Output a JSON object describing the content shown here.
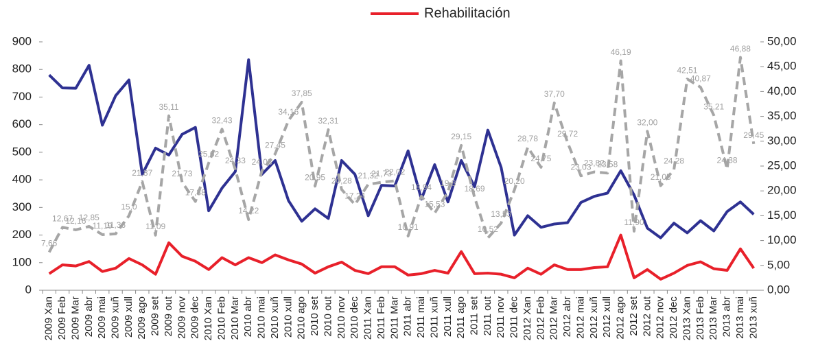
{
  "chart_data": {
    "type": "line",
    "categories": [
      "2009 Xan",
      "2009 Feb",
      "2009 Mar",
      "2009 abr",
      "2009 mai",
      "2009 xuñ",
      "2009 xull",
      "2009 ago",
      "2009 set",
      "2009 out",
      "2009 nov",
      "2009 dec",
      "2010 Xan",
      "2010 Feb",
      "2010 Mar",
      "2010 abr",
      "2010 mai",
      "2010 xuñ",
      "2010 xull",
      "2010 ago",
      "2010 set",
      "2010 out",
      "2010 nov",
      "2010 dec",
      "2011 Xan",
      "2011 Feb",
      "2011 Mar",
      "2011 abr",
      "2011 mai",
      "2011 xuñ",
      "2011 xull",
      "2011 ago",
      "2011 set",
      "2011 out",
      "2011 nov",
      "2011 dec",
      "2012 Xan",
      "2012 Feb",
      "2012 Mar",
      "2012 abr",
      "2012 mai",
      "2012 xuñ",
      "2012 xull",
      "2012 ago",
      "2012 set",
      "2012 out",
      "2012 nov",
      "2012 dec",
      "2013 Xan",
      "2013 Feb",
      "2013 Mar",
      "2013 abr",
      "2013 mai",
      "2013 xuñ"
    ],
    "series": [
      {
        "color": "#2e3192",
        "values": [
          780,
          733,
          732,
          815,
          598,
          705,
          762,
          420,
          515,
          490,
          565,
          590,
          288,
          370,
          430,
          835,
          420,
          470,
          325,
          250,
          295,
          260,
          470,
          420,
          270,
          380,
          378,
          505,
          330,
          455,
          320,
          470,
          375,
          580,
          445,
          200,
          270,
          228,
          240,
          245,
          318,
          340,
          352,
          433,
          345,
          225,
          190,
          243,
          208,
          252,
          215,
          285,
          320,
          275
        ]
      },
      {
        "color": "#a6a6a6",
        "axis": "y2",
        "dash": true,
        "values": [
          7.66,
          12.67,
          12.16,
          12.85,
          11.19,
          11.36,
          15.0,
          21.87,
          11.09,
          35.11,
          21.73,
          17.88,
          25.62,
          32.43,
          24.33,
          14.22,
          24.03,
          27.45,
          34.16,
          37.85,
          20.95,
          32.31,
          20.28,
          17.24,
          21.32,
          21.73,
          22.02,
          10.91,
          18.94,
          15.53,
          19.8,
          29.15,
          18.69,
          10.52,
          13.53,
          20.2,
          28.78,
          24.75,
          37.7,
          29.72,
          23.03,
          23.82,
          23.58,
          46.19,
          11.9,
          32.0,
          21.05,
          24.28,
          42.51,
          40.87,
          35.21,
          24.38,
          46.88,
          29.45
        ],
        "value_labels": [
          "7,66",
          "12,67",
          "12,16",
          "12,85",
          "11,19",
          "11,36",
          "15,0",
          "21,87",
          "11,09",
          "35,11",
          "21,73",
          "17,88",
          "25,62",
          "32,43",
          "24,33",
          "14,22",
          "24,03",
          "27,45",
          "34,16",
          "37,85",
          "20,95",
          "32,31",
          "20,28",
          "17,24",
          "21,32",
          "21,73",
          "22,02",
          "10,91",
          "18,94",
          "15,53",
          "19,8",
          "29,15",
          "18,69",
          "10,52",
          "13,53",
          "20,20",
          "28,78",
          "24,75",
          "37,70",
          "29,72",
          "23,03",
          "23,82",
          "23,58",
          "46,19",
          "11,90",
          "32,00",
          "21,05",
          "24,28",
          "42,51",
          "40,87",
          "35,21",
          "24,38",
          "46,88",
          "29,45"
        ]
      },
      {
        "name": "Rehabilitación",
        "color": "#e8202a",
        "values": [
          60,
          92,
          88,
          104,
          68,
          80,
          115,
          92,
          58,
          172,
          123,
          105,
          75,
          118,
          92,
          118,
          100,
          128,
          110,
          95,
          62,
          85,
          102,
          72,
          60,
          85,
          85,
          55,
          60,
          72,
          62,
          140,
          60,
          62,
          58,
          45,
          80,
          58,
          92,
          75,
          75,
          82,
          85,
          200,
          45,
          75,
          40,
          62,
          90,
          103,
          78,
          72,
          150,
          80
        ]
      }
    ],
    "ylim": [
      0,
      900
    ],
    "yticks": [
      0,
      100,
      200,
      300,
      400,
      500,
      600,
      700,
      800,
      900
    ],
    "y2lim": [
      0,
      50
    ],
    "y2ticks": [
      {
        "value": 0,
        "label": "0,00"
      },
      {
        "value": 5,
        "label": "5,00"
      },
      {
        "value": 10,
        "label": "10,00"
      },
      {
        "value": 15,
        "label": "15,00"
      },
      {
        "value": 20,
        "label": "20,00"
      },
      {
        "value": 25,
        "label": "25,00"
      },
      {
        "value": 30,
        "label": "30,00"
      },
      {
        "value": 35,
        "label": "35,00"
      },
      {
        "value": 40,
        "label": "40,00"
      },
      {
        "value": 45,
        "label": "45,00"
      },
      {
        "value": 50,
        "label": "50,00"
      }
    ],
    "grid": false
  }
}
